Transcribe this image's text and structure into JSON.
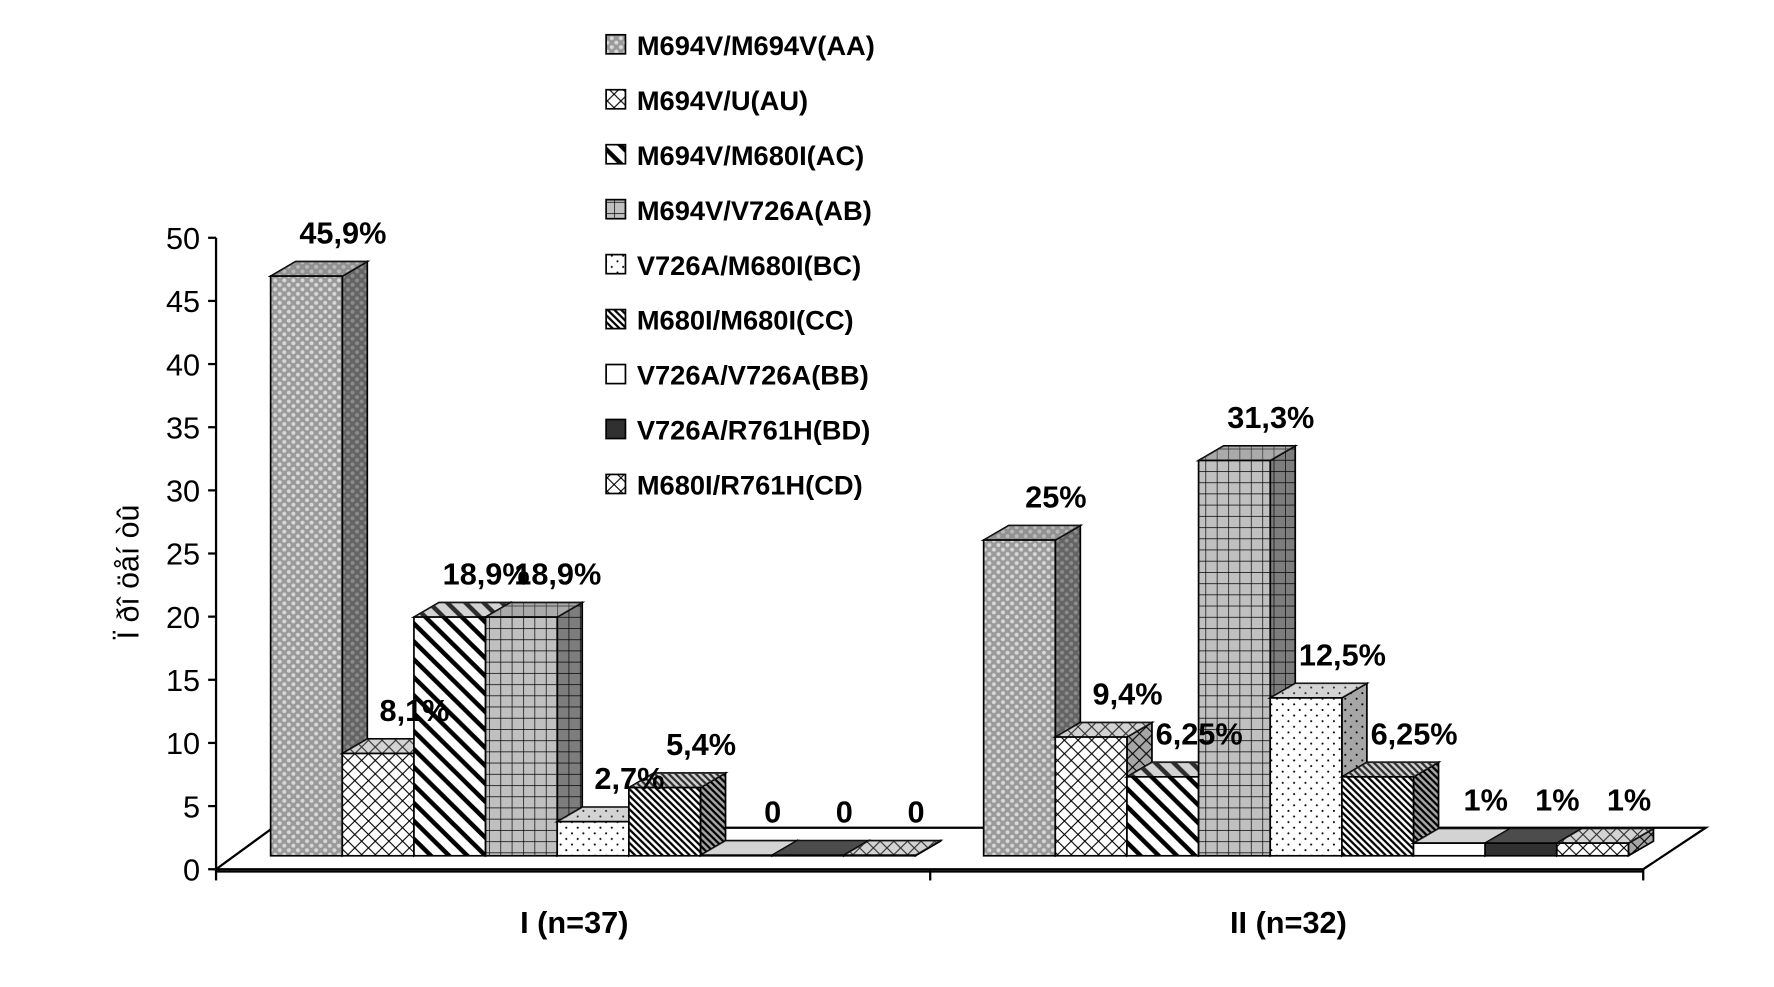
{
  "chart_data": {
    "type": "bar",
    "subtype": "3d-clustered",
    "ylabel": "Ï ðî öåí òû",
    "ylim": [
      0,
      50
    ],
    "yticks": [
      "0",
      "5",
      "10",
      "15",
      "20",
      "25",
      "30",
      "35",
      "40",
      "45",
      "50"
    ],
    "categories": [
      "I (n=37)",
      "II (n=32)"
    ],
    "legend_position": "top-center",
    "series": [
      {
        "name": "M694V/M694V(AA)",
        "pattern": "dots",
        "color": "#a8a8a8",
        "values": [
          45.9,
          25
        ],
        "labels": [
          "45,9%",
          "25%"
        ]
      },
      {
        "name": "M694V/U(AU)",
        "pattern": "diamond",
        "color": "#ffffff",
        "values": [
          8.1,
          9.4
        ],
        "labels": [
          "8,1%",
          "9,4%"
        ]
      },
      {
        "name": "M694V/M680I(AC)",
        "pattern": "diag",
        "color": "#ffffff",
        "values": [
          18.9,
          6.25
        ],
        "labels": [
          "18,9%",
          "6,25%"
        ]
      },
      {
        "name": "M694V/V726A(AB)",
        "pattern": "grid",
        "color": "#c0c0c0",
        "values": [
          18.9,
          31.3
        ],
        "labels": [
          "18,9%",
          "31,3%"
        ]
      },
      {
        "name": "V726A/M680I(BC)",
        "pattern": "sparse",
        "color": "#ffffff",
        "values": [
          2.7,
          12.5
        ],
        "labels": [
          "2,7%",
          "12,5%"
        ]
      },
      {
        "name": "M680I/M680I(CC)",
        "pattern": "diag-dense",
        "color": "#ffffff",
        "values": [
          5.4,
          6.25
        ],
        "labels": [
          "5,4%",
          "6,25%"
        ]
      },
      {
        "name": "V726A/V726A(BB)",
        "pattern": "solid",
        "color": "#ffffff",
        "values": [
          0,
          1
        ],
        "labels": [
          "0",
          "1%"
        ]
      },
      {
        "name": "V726A/R761H(BD)",
        "pattern": "solid",
        "color": "#303030",
        "values": [
          0,
          1
        ],
        "labels": [
          "0",
          "1%"
        ]
      },
      {
        "name": "M680I/R761H(CD)",
        "pattern": "diamond",
        "color": "#ffffff",
        "values": [
          0,
          1
        ],
        "labels": [
          "0",
          "1%"
        ]
      }
    ]
  }
}
